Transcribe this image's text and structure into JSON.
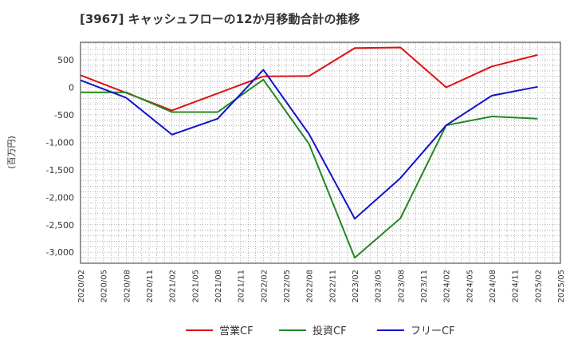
{
  "chart_data": {
    "type": "line",
    "title": "[3967]  キャッシュフローの12か月移動合計の推移",
    "ylabel": "(百万円)",
    "xlabel": "",
    "ylim": [
      -3200,
      820
    ],
    "yticks": [
      500,
      0,
      -500,
      -1000,
      -1500,
      -2000,
      -2500,
      -3000
    ],
    "ytick_labels": [
      "500",
      "0",
      "-500",
      "-1,000",
      "-1,500",
      "-2,000",
      "-2,500",
      "-3,000"
    ],
    "categories": [
      "2020/02",
      "2020/05",
      "2020/08",
      "2020/11",
      "2021/02",
      "2021/05",
      "2021/08",
      "2021/11",
      "2022/02",
      "2022/05",
      "2022/08",
      "2022/11",
      "2023/02",
      "2023/05",
      "2023/08",
      "2023/11",
      "2024/02",
      "2024/05",
      "2024/08",
      "2024/11",
      "2025/02",
      "2025/05"
    ],
    "grid": true,
    "legend_position": "bottom-center",
    "series": [
      {
        "name": "営業CF",
        "color": "#dd1111",
        "points": [
          [
            "2020/02",
            220
          ],
          [
            "2020/08",
            -100
          ],
          [
            "2021/02",
            -420
          ],
          [
            "2022/02",
            200
          ],
          [
            "2022/08",
            205
          ],
          [
            "2023/02",
            715
          ],
          [
            "2023/08",
            725
          ],
          [
            "2024/02",
            0
          ],
          [
            "2024/08",
            380
          ],
          [
            "2025/02",
            590
          ]
        ]
      },
      {
        "name": "投資CF",
        "color": "#228822",
        "points": [
          [
            "2020/02",
            -90
          ],
          [
            "2020/08",
            -90
          ],
          [
            "2021/02",
            -450
          ],
          [
            "2021/08",
            -450
          ],
          [
            "2022/02",
            140
          ],
          [
            "2022/08",
            -1030
          ],
          [
            "2023/02",
            -3100
          ],
          [
            "2023/08",
            -2380
          ],
          [
            "2024/02",
            -690
          ],
          [
            "2024/08",
            -530
          ],
          [
            "2025/02",
            -570
          ]
        ]
      },
      {
        "name": "フリーCF",
        "color": "#1111cc",
        "points": [
          [
            "2020/02",
            130
          ],
          [
            "2020/08",
            -190
          ],
          [
            "2021/02",
            -860
          ],
          [
            "2021/08",
            -570
          ],
          [
            "2022/02",
            320
          ],
          [
            "2022/08",
            -850
          ],
          [
            "2023/02",
            -2390
          ],
          [
            "2023/08",
            -1650
          ],
          [
            "2024/02",
            -690
          ],
          [
            "2024/08",
            -150
          ],
          [
            "2025/02",
            10
          ]
        ]
      }
    ]
  }
}
